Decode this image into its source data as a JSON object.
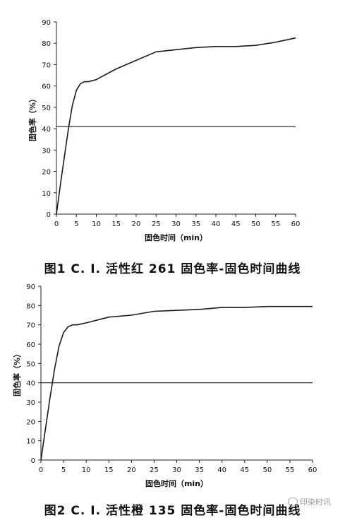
{
  "chart_data": [
    {
      "type": "line",
      "title": "图1    C. I. 活性红 261 固色率-固色时间曲线",
      "xlabel": "固色时间（min）",
      "ylabel": "固色率（%）",
      "xlim": [
        0,
        60
      ],
      "ylim": [
        0,
        90
      ],
      "xticks": [
        "0",
        "5",
        "10",
        "15",
        "20",
        "25",
        "30",
        "35",
        "40",
        "45",
        "50",
        "55",
        "60"
      ],
      "yticks": [
        "0",
        "10",
        "20",
        "30",
        "40",
        "50",
        "60",
        "70",
        "80",
        "90"
      ],
      "grid": false,
      "series": [
        {
          "x": [
            0,
            1,
            2,
            3,
            4,
            5,
            6,
            7,
            8,
            10,
            15,
            20,
            25,
            30,
            35,
            40,
            45,
            50,
            55,
            60
          ],
          "values": [
            0,
            14,
            27,
            40,
            51,
            58,
            61,
            62,
            62,
            63,
            68,
            72,
            76,
            77,
            78,
            78.5,
            78.5,
            79,
            80.5,
            82.5
          ]
        },
        {
          "x": [
            0,
            60
          ],
          "values": [
            41,
            41
          ]
        }
      ]
    },
    {
      "type": "line",
      "title": "图2    C. I. 活性橙 135 固色率-固色时间曲线",
      "xlabel": "固色时间（min）",
      "ylabel": "固色率（%）",
      "xlim": [
        0,
        60
      ],
      "ylim": [
        0,
        90
      ],
      "xticks": [
        "0",
        "5",
        "10",
        "15",
        "20",
        "25",
        "30",
        "35",
        "40",
        "45",
        "50",
        "55",
        "60"
      ],
      "yticks": [
        "0",
        "10",
        "20",
        "30",
        "40",
        "50",
        "60",
        "70",
        "80",
        "90"
      ],
      "grid": false,
      "series": [
        {
          "x": [
            0,
            1,
            2,
            3,
            4,
            5,
            6,
            7,
            8,
            10,
            15,
            20,
            25,
            30,
            35,
            40,
            45,
            50,
            55,
            60
          ],
          "values": [
            0,
            16,
            32,
            47,
            59,
            66,
            69,
            70,
            70,
            71,
            74,
            75,
            77,
            77.5,
            78,
            79,
            79,
            79.5,
            79.5,
            79.5
          ]
        },
        {
          "x": [
            0,
            60
          ],
          "values": [
            40,
            40
          ]
        }
      ]
    }
  ],
  "watermark": {
    "text": "印染时讯"
  }
}
